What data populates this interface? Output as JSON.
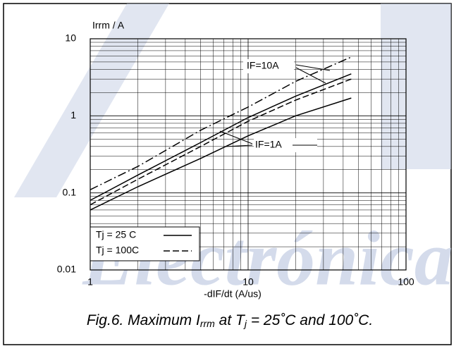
{
  "chart_data": {
    "type": "line",
    "watermark": "Electrónica",
    "y_label": "Irrm / A",
    "x_label": "-dIF/dt (A/us)",
    "caption": [
      "Fig.6.   Maximum I",
      "rrm",
      " at T",
      "j",
      " = 25˚C and 100˚C."
    ],
    "log_x": true,
    "log_y": true,
    "grid": true,
    "xlim": [
      1,
      100
    ],
    "xticks": [
      1,
      10,
      100
    ],
    "ylim": [
      0.01,
      10
    ],
    "yticks": [
      0.01,
      0.1,
      1,
      10
    ],
    "x": [
      1,
      2,
      5,
      10,
      20,
      45
    ],
    "series": [
      {
        "style": "dashdot",
        "color": "#000000",
        "values": [
          0.11,
          0.22,
          0.65,
          1.3,
          2.8,
          5.8
        ]
      },
      {
        "style": "solid",
        "color": "#000000",
        "values": [
          0.08,
          0.17,
          0.45,
          0.95,
          1.8,
          3.5
        ]
      },
      {
        "style": "dashed",
        "color": "#000000",
        "values": [
          0.07,
          0.15,
          0.4,
          0.85,
          1.6,
          3.0
        ]
      },
      {
        "style": "solid",
        "color": "#000000",
        "values": [
          0.06,
          0.12,
          0.28,
          0.55,
          1.0,
          1.7
        ]
      }
    ],
    "legend": [
      {
        "label": "Tj = 25 C",
        "style": "solid"
      },
      {
        "label": "Tj = 100C",
        "style": "dashed"
      }
    ],
    "annotations": [
      "IF=10A",
      "IF=1A"
    ]
  }
}
